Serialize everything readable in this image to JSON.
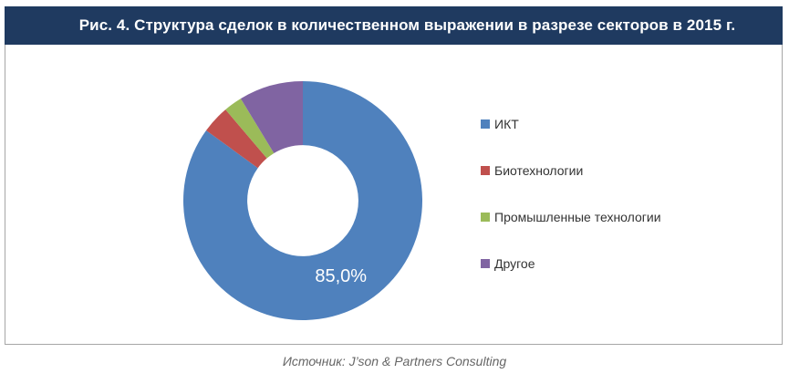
{
  "figure": {
    "title": "Рис. 4. Структура сделок в количественном выражении в разрезе секторов в 2015 г.",
    "source": "Источник: J’son & Partners Consulting"
  },
  "colors": {
    "header_bg": "#1F3A60",
    "header_text": "#FFFFFF",
    "box_border": "#A6A6A6",
    "legend_text": "#333333",
    "source_text": "#666666",
    "slice_label_text": "#FFFFFF"
  },
  "chart_data": {
    "type": "pie",
    "subtype": "donut",
    "title": "Рис. 4. Структура сделок в количественном выражении в разрезе секторов в 2015 г.",
    "unit": "%",
    "categories": [
      "ИКТ",
      "Биотехнологии",
      "Промышленные технологии",
      "Другое"
    ],
    "values": [
      85.0,
      3.8,
      2.5,
      8.7
    ],
    "colors": [
      "#4F81BD",
      "#C0504D",
      "#9BBB59",
      "#8064A2"
    ],
    "labels": [
      "85,0%",
      null,
      null,
      null
    ],
    "start_angle_deg": 0,
    "direction": "clockwise",
    "inner_radius_ratio": 0.465,
    "legend_position": "right",
    "grid": false
  }
}
